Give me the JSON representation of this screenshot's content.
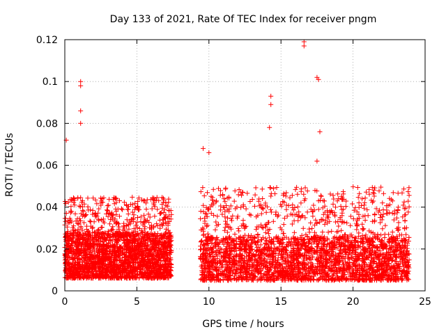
{
  "chart_data": {
    "type": "scatter",
    "title": "Day 133 of 2021, Rate Of TEC Index for receiver pngm",
    "xlabel": "GPS time / hours",
    "ylabel": "ROTI / TECUs",
    "xlim": [
      0,
      25
    ],
    "ylim": [
      0,
      0.12
    ],
    "xticks": [
      0,
      5,
      10,
      15,
      20,
      25
    ],
    "yticks": [
      0,
      0.02,
      0.04,
      0.06,
      0.08,
      0.1,
      0.12
    ],
    "xtick_labels": [
      "0",
      "5",
      "10",
      "15",
      "20",
      "25"
    ],
    "ytick_labels": [
      "0",
      "0.02",
      "0.04",
      "0.06",
      "0.08",
      "0.1",
      "0.12"
    ],
    "grid": true,
    "marker": "+",
    "series_color": "#ff0000",
    "notable_points": [
      {
        "x": 0.1,
        "y": 0.072
      },
      {
        "x": 1.1,
        "y": 0.1
      },
      {
        "x": 1.1,
        "y": 0.098
      },
      {
        "x": 1.1,
        "y": 0.086
      },
      {
        "x": 1.1,
        "y": 0.08
      },
      {
        "x": 14.3,
        "y": 0.093
      },
      {
        "x": 14.3,
        "y": 0.089
      },
      {
        "x": 14.2,
        "y": 0.078
      },
      {
        "x": 16.6,
        "y": 0.119
      },
      {
        "x": 16.6,
        "y": 0.117
      },
      {
        "x": 17.5,
        "y": 0.102
      },
      {
        "x": 17.6,
        "y": 0.101
      },
      {
        "x": 17.7,
        "y": 0.076
      },
      {
        "x": 17.5,
        "y": 0.062
      },
      {
        "x": 9.6,
        "y": 0.068
      },
      {
        "x": 10.0,
        "y": 0.066
      }
    ],
    "segments": [
      {
        "x_start": 0.0,
        "x_end": 7.4,
        "y_low": 0.006,
        "y_typ": 0.022,
        "y_high": 0.045,
        "n": 2400
      },
      {
        "x_start": 9.4,
        "x_end": 23.9,
        "y_low": 0.005,
        "y_typ": 0.02,
        "y_high": 0.05,
        "n": 5200
      }
    ]
  }
}
